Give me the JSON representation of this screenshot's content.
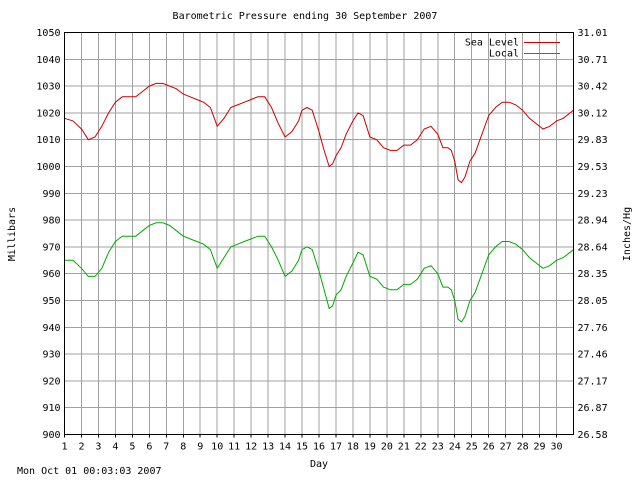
{
  "chart_data": {
    "type": "line",
    "title": "Barometric Pressure ending 30 September 2007",
    "xlabel": "Day",
    "ylabel": "Millibars",
    "ylabel_right": "Inches/Hg",
    "xlim": [
      1,
      31
    ],
    "ylim": [
      900,
      1050
    ],
    "ylim_right": [
      26.58,
      31.01
    ],
    "x_ticks": [
      "1",
      "2",
      "3",
      "4",
      "5",
      "6",
      "7",
      "8",
      "9",
      "10",
      "11",
      "12",
      "13",
      "14",
      "15",
      "16",
      "17",
      "18",
      "19",
      "20",
      "21",
      "22",
      "23",
      "24",
      "25",
      "26",
      "27",
      "28",
      "29",
      "30"
    ],
    "y_ticks": [
      900,
      910,
      920,
      930,
      940,
      950,
      960,
      970,
      980,
      990,
      1000,
      1010,
      1020,
      1030,
      1040,
      1050
    ],
    "y_ticks_right": [
      "26.58",
      "26.87",
      "27.17",
      "27.46",
      "27.76",
      "28.05",
      "28.35",
      "28.64",
      "28.94",
      "29.23",
      "29.53",
      "29.83",
      "30.12",
      "30.42",
      "30.71",
      "31.01"
    ],
    "grid": true,
    "legend": "top-right",
    "series": [
      {
        "name": "Sea Level",
        "color": "#cc0000",
        "x": [
          1.0,
          1.5,
          2.0,
          2.4,
          2.8,
          3.2,
          3.6,
          4.0,
          4.4,
          4.8,
          5.2,
          5.6,
          6.0,
          6.4,
          6.8,
          7.2,
          7.6,
          8.0,
          8.4,
          8.8,
          9.2,
          9.6,
          10.0,
          10.4,
          10.8,
          11.2,
          11.6,
          12.0,
          12.4,
          12.8,
          13.2,
          13.6,
          14.0,
          14.4,
          14.8,
          15.0,
          15.3,
          15.6,
          16.0,
          16.3,
          16.6,
          16.8,
          17.0,
          17.3,
          17.6,
          18.0,
          18.3,
          18.6,
          19.0,
          19.4,
          19.8,
          20.2,
          20.6,
          21.0,
          21.4,
          21.8,
          22.2,
          22.6,
          23.0,
          23.3,
          23.6,
          23.8,
          24.0,
          24.2,
          24.4,
          24.6,
          24.9,
          25.2,
          25.6,
          26.0,
          26.4,
          26.8,
          27.2,
          27.6,
          28.0,
          28.4,
          28.8,
          29.2,
          29.6,
          30.0,
          30.4,
          30.8,
          31.0
        ],
        "values": [
          1018,
          1017,
          1014,
          1010,
          1011,
          1015,
          1020,
          1024,
          1026,
          1026,
          1026,
          1028,
          1030,
          1031,
          1031,
          1030,
          1029,
          1027,
          1026,
          1025,
          1024,
          1022,
          1015,
          1018,
          1022,
          1023,
          1024,
          1025,
          1026,
          1026,
          1022,
          1016,
          1011,
          1013,
          1017,
          1021,
          1022,
          1021,
          1013,
          1006,
          1000,
          1001,
          1004,
          1007,
          1012,
          1017,
          1020,
          1019,
          1011,
          1010,
          1007,
          1006,
          1006,
          1008,
          1008,
          1010,
          1014,
          1015,
          1012,
          1007,
          1007,
          1006,
          1002,
          995,
          994,
          996,
          1002,
          1005,
          1012,
          1019,
          1022,
          1024,
          1024,
          1023,
          1021,
          1018,
          1016,
          1014,
          1015,
          1017,
          1018,
          1020,
          1021
        ]
      },
      {
        "name": "Local",
        "color": "#00aa00",
        "x": [
          1.0,
          1.5,
          2.0,
          2.4,
          2.8,
          3.2,
          3.6,
          4.0,
          4.4,
          4.8,
          5.2,
          5.6,
          6.0,
          6.4,
          6.8,
          7.2,
          7.6,
          8.0,
          8.4,
          8.8,
          9.2,
          9.6,
          10.0,
          10.4,
          10.8,
          11.2,
          11.6,
          12.0,
          12.4,
          12.8,
          13.2,
          13.6,
          14.0,
          14.4,
          14.8,
          15.0,
          15.3,
          15.6,
          16.0,
          16.3,
          16.6,
          16.8,
          17.0,
          17.3,
          17.6,
          18.0,
          18.3,
          18.6,
          19.0,
          19.4,
          19.8,
          20.2,
          20.6,
          21.0,
          21.4,
          21.8,
          22.2,
          22.6,
          23.0,
          23.3,
          23.6,
          23.8,
          24.0,
          24.2,
          24.4,
          24.6,
          24.9,
          25.2,
          25.6,
          26.0,
          26.4,
          26.8,
          27.2,
          27.6,
          28.0,
          28.4,
          28.8,
          29.2,
          29.6,
          30.0,
          30.4,
          30.8,
          31.0
        ],
        "values": [
          965,
          965,
          962,
          959,
          959,
          962,
          968,
          972,
          974,
          974,
          974,
          976,
          978,
          979,
          979,
          978,
          976,
          974,
          973,
          972,
          971,
          969,
          962,
          966,
          970,
          971,
          972,
          973,
          974,
          974,
          970,
          965,
          959,
          961,
          965,
          969,
          970,
          969,
          961,
          954,
          947,
          948,
          952,
          954,
          959,
          964,
          968,
          967,
          959,
          958,
          955,
          954,
          954,
          956,
          956,
          958,
          962,
          963,
          960,
          955,
          955,
          954,
          950,
          943,
          942,
          944,
          950,
          953,
          960,
          967,
          970,
          972,
          972,
          971,
          969,
          966,
          964,
          962,
          963,
          965,
          966,
          968,
          969
        ]
      }
    ]
  },
  "footer": {
    "timestamp": "Mon Oct 01 00:03:03 2007"
  }
}
